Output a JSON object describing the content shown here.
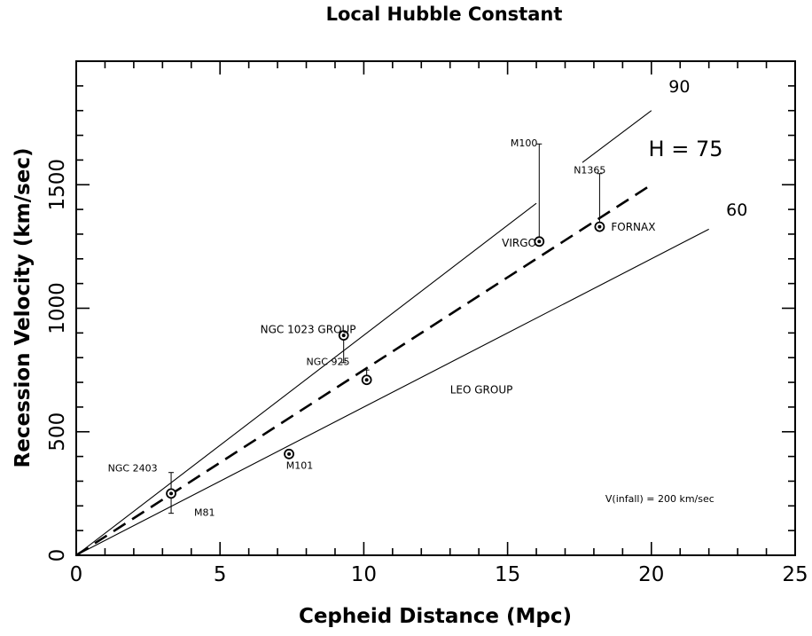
{
  "chart_data": {
    "type": "scatter",
    "title": "Local Hubble Constant",
    "xlabel": "Cepheid Distance (Mpc)",
    "ylabel": "Recession Velocity (km/sec)",
    "xlim": [
      0,
      25
    ],
    "ylim": [
      0,
      2000
    ],
    "x_ticks": [
      0,
      5,
      10,
      15,
      20,
      25
    ],
    "x_tick_labels": [
      "0",
      "5",
      "10",
      "15",
      "20",
      "25"
    ],
    "y_ticks": [
      0,
      500,
      1000,
      1500
    ],
    "y_tick_labels": [
      "0",
      "500",
      "1000",
      "1500"
    ],
    "grid": false,
    "points": [
      {
        "x": 3.3,
        "y": 250,
        "err_low": 170,
        "err_high": 335
      },
      {
        "x": 7.4,
        "y": 410
      },
      {
        "x": 9.3,
        "y": 890,
        "err_low": 780
      },
      {
        "x": 10.1,
        "y": 710,
        "err_high": 750
      },
      {
        "x": 16.1,
        "y": 1270,
        "err_high": 1665
      },
      {
        "x": 18.2,
        "y": 1330,
        "err_high": 1545
      }
    ],
    "lines": [
      {
        "x": [
          0,
          20
        ],
        "y": [
          0,
          1500
        ],
        "style": "dashed",
        "label": "H = 75"
      },
      {
        "x": [
          0,
          16
        ],
        "y": [
          0,
          1425
        ],
        "style": "solid",
        "label": "90"
      },
      {
        "x": [
          17.6,
          20
        ],
        "y": [
          1590,
          1800
        ],
        "style": "solid"
      },
      {
        "x": [
          0,
          22
        ],
        "y": [
          0,
          1320
        ],
        "style": "solid",
        "label": "60"
      }
    ],
    "annotations": [
      {
        "text": "NGC 2403",
        "x": 1.1,
        "y": 340,
        "size": "small"
      },
      {
        "text": "M81",
        "x": 4.1,
        "y": 160,
        "size": "small"
      },
      {
        "text": "M101",
        "x": 7.3,
        "y": 350,
        "size": "small"
      },
      {
        "text": "NGC 1023 GROUP",
        "x": 6.4,
        "y": 900,
        "size": "mid"
      },
      {
        "text": "NGC 925",
        "x": 8.0,
        "y": 770,
        "size": "small"
      },
      {
        "text": "LEO GROUP",
        "x": 13.0,
        "y": 655,
        "size": "mid"
      },
      {
        "text": "M100",
        "x": 15.1,
        "y": 1655,
        "size": "small"
      },
      {
        "text": "N1365",
        "x": 17.3,
        "y": 1545,
        "size": "small"
      },
      {
        "text": "VIRGO",
        "x": 14.8,
        "y": 1250,
        "size": "mid"
      },
      {
        "text": "FORNAX",
        "x": 18.6,
        "y": 1315,
        "size": "mid"
      },
      {
        "text": "90",
        "x": 20.6,
        "y": 1875,
        "size": "med"
      },
      {
        "text": "H = 75",
        "x": 19.9,
        "y": 1615,
        "size": "large"
      },
      {
        "text": "60",
        "x": 22.6,
        "y": 1375,
        "size": "med"
      },
      {
        "text": "V(infall) = 200 km/sec",
        "x": 18.4,
        "y": 215,
        "size": "small"
      }
    ]
  }
}
